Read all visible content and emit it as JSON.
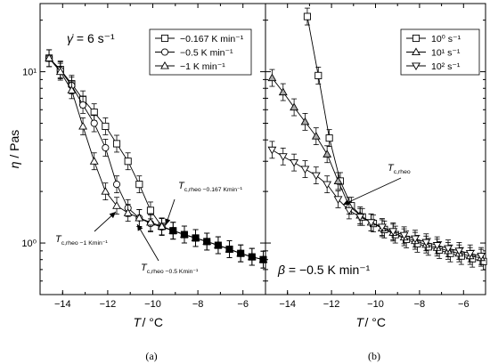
{
  "chart_data": [
    {
      "type": "line",
      "panel_label": "(a)",
      "xlabel": "T / °C",
      "ylabel": "η / Pas",
      "annotation": "γ̇ = 6 s⁻¹",
      "xlim": [
        -15,
        -5
      ],
      "ylim": [
        0.5,
        25
      ],
      "yscale": "log",
      "x_ticks": [
        "-14",
        "-12",
        "-10",
        "-8",
        "-6"
      ],
      "y_ticks": [
        "10⁰",
        "10¹"
      ],
      "legend_position": "top-right",
      "callouts": [
        {
          "main": "T",
          "sub": "c,rheo −0.167 Kmin⁻¹",
          "target": [
            -10.1,
            1.3
          ]
        },
        {
          "main": "T",
          "sub": "c,rheo −0.5 Kmin⁻¹",
          "target": [
            -10.9,
            1.4
          ]
        },
        {
          "main": "T",
          "sub": "c,rheo −1 Kmin⁻¹",
          "target": [
            -12.0,
            1.65
          ]
        }
      ],
      "series": [
        {
          "name": "−0.167 K min⁻¹",
          "marker": "square",
          "x": [
            -14.6,
            -14.1,
            -13.6,
            -13.1,
            -12.6,
            -12.1,
            -11.6,
            -11.1,
            -10.6,
            -10.1,
            -9.6,
            -9.1,
            -8.6,
            -8.1,
            -7.6,
            -7.1,
            -6.6,
            -6.1,
            -5.6,
            -5.1
          ],
          "y": [
            12.0,
            10.3,
            8.5,
            6.9,
            5.8,
            4.8,
            3.8,
            3.0,
            2.2,
            1.55,
            1.25,
            1.18,
            1.12,
            1.07,
            1.02,
            0.97,
            0.92,
            0.87,
            0.83,
            0.8
          ]
        },
        {
          "name": "−0.5 K min⁻¹",
          "marker": "circle",
          "x": [
            -14.6,
            -14.1,
            -13.6,
            -13.1,
            -12.6,
            -12.1,
            -11.6,
            -11.1,
            -10.6,
            -10.1,
            -9.6,
            -9.1,
            -8.6,
            -8.1,
            -7.6,
            -7.1,
            -6.6,
            -6.1,
            -5.6,
            -5.1
          ],
          "y": [
            12.0,
            10.2,
            8.3,
            6.4,
            5.0,
            3.6,
            2.2,
            1.6,
            1.4,
            1.3,
            1.24,
            1.18,
            1.12,
            1.07,
            1.02,
            0.97,
            0.92,
            0.87,
            0.83,
            0.8
          ]
        },
        {
          "name": "−1 K min⁻¹",
          "marker": "triangle",
          "x": [
            -14.6,
            -14.1,
            -13.6,
            -13.1,
            -12.6,
            -12.1,
            -11.6,
            -11.1,
            -10.6,
            -10.1,
            -9.6,
            -9.1,
            -8.6,
            -8.1,
            -7.6,
            -7.1,
            -6.6,
            -6.1,
            -5.6,
            -5.1
          ],
          "y": [
            12.0,
            10.0,
            7.8,
            4.8,
            3.0,
            2.0,
            1.65,
            1.5,
            1.4,
            1.32,
            1.25,
            1.18,
            1.12,
            1.07,
            1.02,
            0.97,
            0.92,
            0.87,
            0.83,
            0.8
          ]
        }
      ]
    },
    {
      "type": "line",
      "panel_label": "(b)",
      "xlabel": "T / °C",
      "annotation": "β = −0.5 K min⁻¹",
      "xlim": [
        -15,
        -5
      ],
      "ylim": [
        0.5,
        25
      ],
      "yscale": "log",
      "x_ticks": [
        "-14",
        "-12",
        "-10",
        "-8",
        "-6"
      ],
      "legend_position": "top-right",
      "callouts": [
        {
          "main": "T",
          "sub": "c,rheo",
          "target": [
            -11.7,
            1.9
          ]
        }
      ],
      "series": [
        {
          "name": "10⁰ s⁻¹",
          "marker": "square",
          "x": [
            -13.1,
            -12.6,
            -12.1,
            -11.6,
            -11.1,
            -10.6,
            -10.1,
            -9.6,
            -9.1,
            -8.6,
            -8.1,
            -7.6,
            -7.1,
            -6.6,
            -6.1,
            -5.6,
            -5.1
          ],
          "y": [
            21.0,
            9.5,
            4.1,
            2.3,
            1.65,
            1.42,
            1.3,
            1.2,
            1.12,
            1.05,
            0.99,
            0.95,
            0.91,
            0.87,
            0.84,
            0.81,
            0.78
          ]
        },
        {
          "name": "10¹ s⁻¹",
          "marker": "triangle",
          "x": [
            -14.7,
            -14.2,
            -13.7,
            -13.2,
            -12.7,
            -12.2,
            -11.7,
            -11.2,
            -10.7,
            -10.2,
            -9.7,
            -9.2,
            -8.7,
            -8.2,
            -7.7,
            -7.2,
            -6.7,
            -6.2,
            -5.7,
            -5.2
          ],
          "y": [
            9.2,
            7.6,
            6.2,
            5.1,
            4.2,
            3.3,
            2.3,
            1.65,
            1.45,
            1.32,
            1.22,
            1.15,
            1.08,
            1.03,
            0.98,
            0.94,
            0.9,
            0.87,
            0.84,
            0.82
          ]
        },
        {
          "name": "10² s⁻¹",
          "marker": "triangle-down",
          "x": [
            -14.7,
            -14.2,
            -13.7,
            -13.2,
            -12.7,
            -12.2,
            -11.7,
            -11.2,
            -10.7,
            -10.2,
            -9.7,
            -9.2,
            -8.7,
            -8.2,
            -7.7,
            -7.2,
            -6.7,
            -6.2,
            -5.7,
            -5.2
          ],
          "y": [
            3.5,
            3.2,
            2.95,
            2.7,
            2.48,
            2.2,
            1.8,
            1.55,
            1.42,
            1.32,
            1.24,
            1.17,
            1.11,
            1.06,
            1.01,
            0.97,
            0.93,
            0.9,
            0.87,
            0.84
          ]
        }
      ]
    }
  ]
}
